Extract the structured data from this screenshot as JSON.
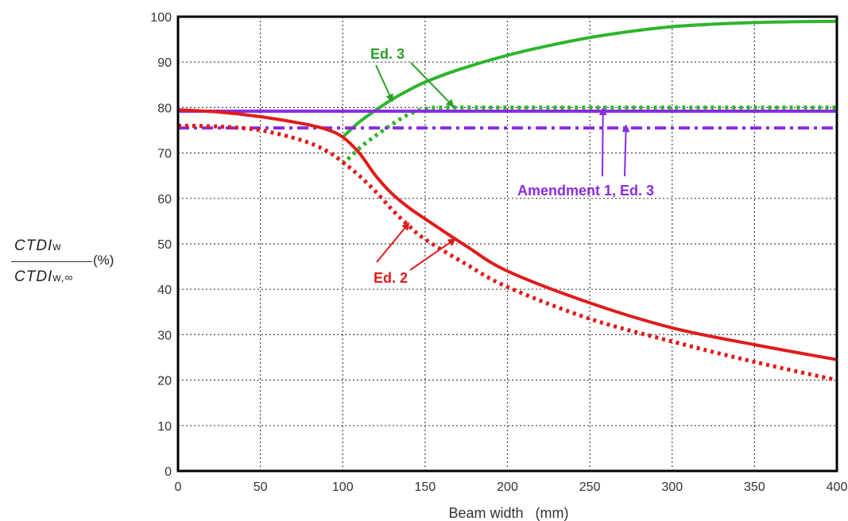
{
  "chart_data": {
    "type": "line",
    "xlabel": "Beam width   (mm)",
    "ylabel": {
      "numerator_main": "CTDI",
      "numerator_sub": "w",
      "denominator_main": "CTDI",
      "denominator_sub": "w,∞",
      "unit": "(%)"
    },
    "xlim": [
      0,
      400
    ],
    "ylim": [
      0,
      100
    ],
    "x_ticks": [
      0,
      50,
      100,
      150,
      200,
      250,
      300,
      350,
      400
    ],
    "y_ticks": [
      0,
      10,
      20,
      30,
      40,
      50,
      60,
      70,
      80,
      90,
      100
    ],
    "grid": true,
    "series": [
      {
        "name": "Ed. 3",
        "color": "#2db52d",
        "style": "solid",
        "x": [
          100,
          110,
          120,
          130,
          140,
          150,
          170,
          200,
          230,
          260,
          300,
          350,
          400
        ],
        "y": [
          73.5,
          76.8,
          79.4,
          81.8,
          83.8,
          85.6,
          88.3,
          91.5,
          94.0,
          96.0,
          97.8,
          98.7,
          99.0
        ]
      },
      {
        "name": "Ed. 3",
        "color": "#2db52d",
        "style": "dotted",
        "x": [
          100,
          110,
          120,
          130,
          140,
          150,
          160,
          200,
          300,
          400
        ],
        "y": [
          67.5,
          71.0,
          73.8,
          76.3,
          78.5,
          79.7,
          80.0,
          80.0,
          80.0,
          80.0
        ]
      },
      {
        "name": "Amendment 1, Ed. 3",
        "color": "#8a2be2",
        "style": "solid",
        "x": [
          0,
          400
        ],
        "y": [
          79.2,
          79.2
        ]
      },
      {
        "name": "Amendment 1, Ed. 3",
        "color": "#8a2be2",
        "style": "dashdot",
        "x": [
          0,
          400
        ],
        "y": [
          75.5,
          75.5
        ]
      },
      {
        "name": "Ed. 2",
        "color": "#e01b1b",
        "style": "solid",
        "x": [
          0,
          25,
          50,
          75,
          90,
          100,
          110,
          120,
          130,
          140,
          150,
          175,
          200,
          250,
          300,
          350,
          400
        ],
        "y": [
          79.5,
          79.0,
          78.0,
          76.5,
          75.2,
          73.5,
          70.0,
          65.0,
          61.0,
          58.0,
          55.5,
          49.5,
          44.0,
          37.0,
          31.5,
          27.8,
          24.5
        ]
      },
      {
        "name": "Ed. 2",
        "color": "#e01b1b",
        "style": "dotted",
        "x": [
          0,
          25,
          50,
          75,
          90,
          100,
          110,
          120,
          130,
          140,
          150,
          175,
          200,
          250,
          300,
          350,
          400
        ],
        "y": [
          76.0,
          75.8,
          75.0,
          72.8,
          70.5,
          68.0,
          65.0,
          61.5,
          57.5,
          54.0,
          51.0,
          45.5,
          40.5,
          33.5,
          28.5,
          24.0,
          20.0
        ]
      }
    ],
    "annotations": [
      {
        "text": "Ed. 3",
        "color": "#2aa02a"
      },
      {
        "text": "Amendment 1, Ed. 3",
        "color": "#8a2be2"
      },
      {
        "text": "Ed. 2",
        "color": "#e01b1b"
      }
    ]
  }
}
